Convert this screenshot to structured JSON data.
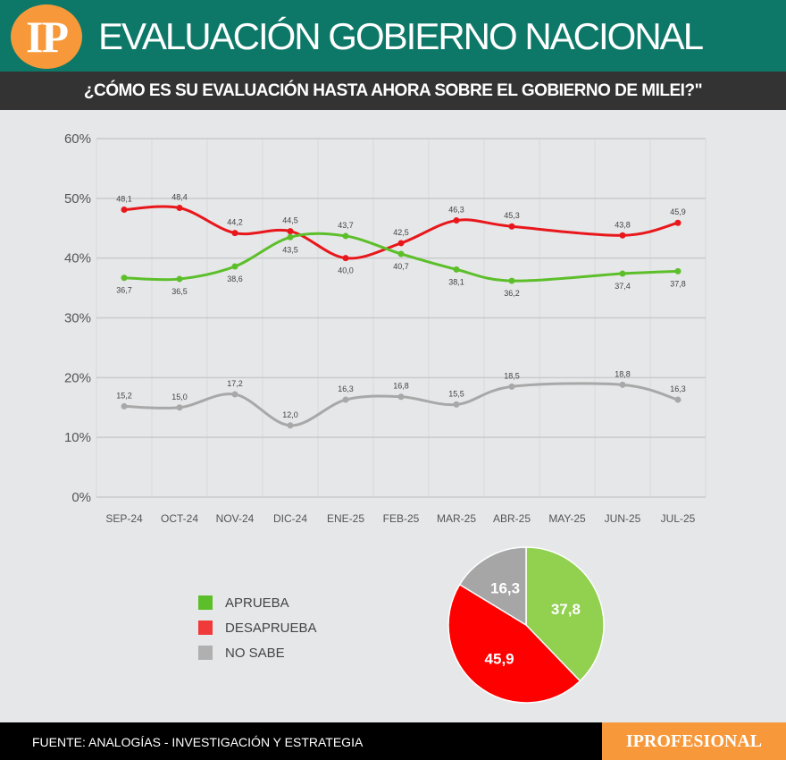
{
  "header": {
    "logo": "IP",
    "title": "EVALUACIÓN GOBIERNO NACIONAL",
    "subtitle": "¿CÓMO ES SU EVALUACIÓN HASTA AHORA SOBRE EL GOBIERNO DE MILEI?\""
  },
  "chart_data": [
    {
      "type": "line",
      "ylim": [
        0,
        60
      ],
      "yticks": [
        "0%",
        "10%",
        "20%",
        "30%",
        "40%",
        "50%",
        "60%"
      ],
      "grid": true,
      "categories": [
        "SEP-24",
        "OCT-24",
        "NOV-24",
        "DIC-24",
        "ENE-25",
        "FEB-25",
        "MAR-25",
        "ABR-25",
        "MAY-25",
        "JUN-25",
        "JUL-25"
      ],
      "series": [
        {
          "name": "DESAPRUEBA",
          "color": "#e8171b",
          "values": [
            48.1,
            48.4,
            44.2,
            44.5,
            40.0,
            42.5,
            46.3,
            45.3,
            null,
            43.8,
            45.9
          ],
          "labels": [
            "48,1",
            "48,4",
            "44,2",
            "44,5",
            "40,0",
            "42,5",
            "46,3",
            "45,3",
            null,
            "43,8",
            "45,9"
          ],
          "label_pos": [
            "above",
            "above",
            "above",
            "above",
            "below",
            "above",
            "above",
            "above",
            null,
            "above",
            "above"
          ]
        },
        {
          "name": "APRUEBA",
          "color": "#5cbf2a",
          "values": [
            36.7,
            36.5,
            38.6,
            43.5,
            43.7,
            40.7,
            38.1,
            36.2,
            null,
            37.4,
            37.8
          ],
          "labels": [
            "36,7",
            "36,5",
            "38,6",
            "43,5",
            "43,7",
            "40,7",
            "38,1",
            "36,2",
            null,
            "37,4",
            "37,8"
          ],
          "label_pos": [
            "below",
            "below",
            "below",
            "below",
            "above",
            "below",
            "below",
            "below",
            null,
            "below",
            "below"
          ]
        },
        {
          "name": "NO SABE",
          "color": "#a8a8a8",
          "values": [
            15.2,
            15.0,
            17.2,
            12.0,
            16.3,
            16.8,
            15.5,
            18.5,
            null,
            18.8,
            16.3
          ],
          "labels": [
            "15,2",
            "15,0",
            "17,2",
            "12,0",
            "16,3",
            "16,8",
            "15,5",
            "18,5",
            null,
            "18,8",
            "16,3"
          ],
          "label_pos": [
            "above",
            "above",
            "above",
            "above",
            "above",
            "above",
            "above",
            "above",
            null,
            "above",
            "above"
          ]
        }
      ]
    },
    {
      "type": "pie",
      "slices": [
        {
          "name": "APRUEBA",
          "value": 37.8,
          "label": "37,8",
          "color": "#92d050"
        },
        {
          "name": "DESAPRUEBA",
          "value": 45.9,
          "label": "45,9",
          "color": "#ff0000"
        },
        {
          "name": "NO SABE",
          "value": 16.3,
          "label": "16,3",
          "color": "#a6a6a6"
        }
      ]
    }
  ],
  "legend": [
    {
      "label": "APRUEBA",
      "color": "#5cbf2a"
    },
    {
      "label": "DESAPRUEBA",
      "color": "#f03a3a"
    },
    {
      "label": "NO SABE",
      "color": "#b0b0b0"
    }
  ],
  "footer": {
    "source": "FUENTE: ANALOGÍAS - INVESTIGACIÓN Y ESTRATEGIA",
    "brand": "IPROFESIONAL"
  }
}
